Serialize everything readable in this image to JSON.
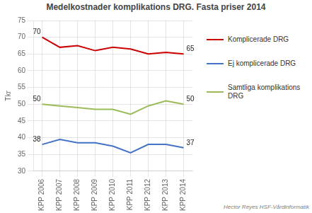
{
  "chart_data": {
    "type": "line",
    "title": "Medelkostnader komplikations DRG. Fasta priser 2014",
    "y_label": "Tkr",
    "categories": [
      "KPP 2006",
      "KPP 2007",
      "KPP 2008",
      "KPP 2009",
      "KPP 2010",
      "KPP 2011",
      "KPP 2012",
      "KPP 2013",
      "KPP 2014"
    ],
    "series": [
      {
        "name": "Komplicerade DRG",
        "color": "#CC0000",
        "values": [
          70,
          67,
          67.5,
          66,
          67,
          66.5,
          65,
          65.5,
          65
        ]
      },
      {
        "name": "Ej komplicerade DRG",
        "color": "#4472C4",
        "values": [
          38,
          39.5,
          38.5,
          38.5,
          37.5,
          35.5,
          38,
          38,
          37
        ]
      },
      {
        "name": "Samtliga komplikations\nDRG",
        "color": "#9BBB59",
        "values": [
          50,
          49.5,
          49,
          48.5,
          48.5,
          47,
          49.5,
          51,
          50
        ]
      }
    ],
    "ylim": [
      30,
      75
    ],
    "yticks": [
      30,
      35,
      40,
      45,
      50,
      55,
      60,
      65,
      70,
      75
    ],
    "grid": true,
    "legend": "right",
    "annotations": [
      {
        "text": "70",
        "x": "KPP 2006",
        "y": 70
      },
      {
        "text": "38",
        "x": "KPP 2006",
        "y": 38
      },
      {
        "text": "50",
        "x": "KPP 2006",
        "y": 50
      },
      {
        "text": "65",
        "x": "KPP 2014",
        "y": 65
      },
      {
        "text": "37",
        "x": "KPP 2014",
        "y": 37
      },
      {
        "text": "50",
        "x": "KPP 2014",
        "y": 50
      },
      {
        "text": "Hector Reyes HSF-Vårdinformatik"
      }
    ]
  }
}
